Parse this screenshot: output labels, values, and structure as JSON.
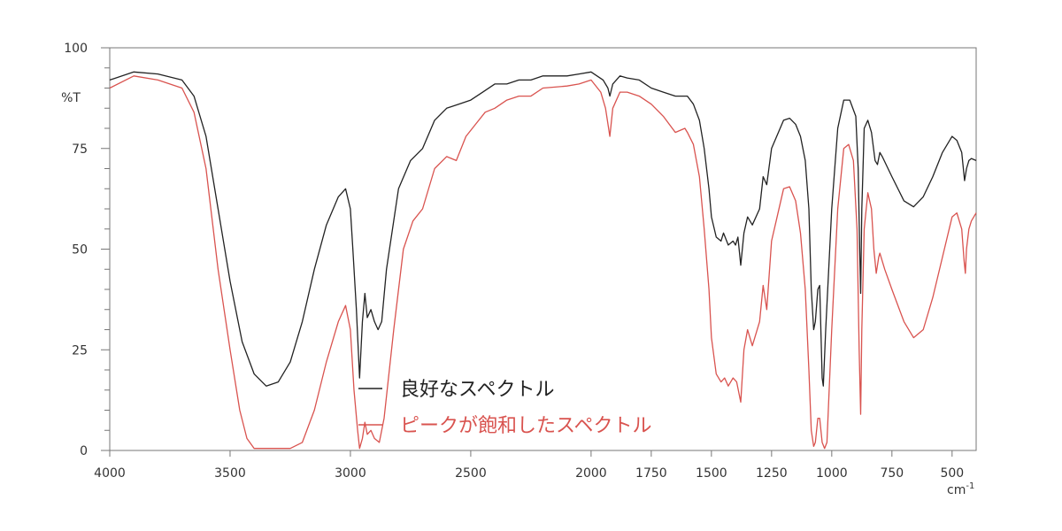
{
  "chart_data": {
    "type": "line",
    "title": "",
    "xlabel": "cm",
    "xlabel_superscript": "-1",
    "ylabel": "%T",
    "xlim": [
      4000,
      400
    ],
    "ylim": [
      0,
      100
    ],
    "x_reversed": true,
    "grid": false,
    "legend_position": "bottom-center",
    "x_ticks": [
      4000,
      3500,
      3000,
      2500,
      2000,
      1750,
      1500,
      1250,
      1000,
      750,
      500
    ],
    "x_tick_labels": [
      "4000",
      "3500",
      "3000",
      "2500",
      "2000",
      "1750",
      "1500",
      "1250",
      "1000",
      "750",
      "500"
    ],
    "y_ticks": [
      0,
      25,
      50,
      75,
      100
    ],
    "y_tick_labels": [
      "0",
      "25",
      "50",
      "75",
      "100"
    ],
    "series": [
      {
        "name": "良好なスペクトル",
        "color": "#222222",
        "points": [
          [
            4000,
            92
          ],
          [
            3900,
            94
          ],
          [
            3800,
            93.5
          ],
          [
            3700,
            92
          ],
          [
            3650,
            88
          ],
          [
            3600,
            78
          ],
          [
            3550,
            60
          ],
          [
            3500,
            42
          ],
          [
            3450,
            27
          ],
          [
            3400,
            19
          ],
          [
            3350,
            16
          ],
          [
            3300,
            17
          ],
          [
            3250,
            22
          ],
          [
            3200,
            32
          ],
          [
            3150,
            45
          ],
          [
            3100,
            56
          ],
          [
            3050,
            63
          ],
          [
            3020,
            65
          ],
          [
            3000,
            60
          ],
          [
            2990,
            50
          ],
          [
            2975,
            35
          ],
          [
            2962,
            18
          ],
          [
            2950,
            32
          ],
          [
            2940,
            39
          ],
          [
            2930,
            33
          ],
          [
            2915,
            35
          ],
          [
            2900,
            32
          ],
          [
            2885,
            30
          ],
          [
            2870,
            32
          ],
          [
            2850,
            45
          ],
          [
            2800,
            65
          ],
          [
            2750,
            72
          ],
          [
            2700,
            75
          ],
          [
            2650,
            82
          ],
          [
            2600,
            85
          ],
          [
            2550,
            86
          ],
          [
            2500,
            87
          ],
          [
            2450,
            89
          ],
          [
            2400,
            91
          ],
          [
            2350,
            91
          ],
          [
            2300,
            92
          ],
          [
            2250,
            92
          ],
          [
            2200,
            93
          ],
          [
            2100,
            93
          ],
          [
            2050,
            93.5
          ],
          [
            2000,
            94
          ],
          [
            1950,
            92
          ],
          [
            1930,
            90
          ],
          [
            1922,
            88
          ],
          [
            1910,
            91
          ],
          [
            1880,
            93
          ],
          [
            1850,
            92.5
          ],
          [
            1800,
            92
          ],
          [
            1750,
            90
          ],
          [
            1700,
            89
          ],
          [
            1650,
            88
          ],
          [
            1600,
            88
          ],
          [
            1575,
            86
          ],
          [
            1550,
            82
          ],
          [
            1530,
            75
          ],
          [
            1510,
            65
          ],
          [
            1500,
            58
          ],
          [
            1480,
            53
          ],
          [
            1460,
            52
          ],
          [
            1450,
            54
          ],
          [
            1430,
            51
          ],
          [
            1410,
            52
          ],
          [
            1400,
            51
          ],
          [
            1390,
            53
          ],
          [
            1378,
            46
          ],
          [
            1365,
            54
          ],
          [
            1350,
            58
          ],
          [
            1330,
            56
          ],
          [
            1300,
            60
          ],
          [
            1285,
            68
          ],
          [
            1270,
            66
          ],
          [
            1250,
            75
          ],
          [
            1200,
            82
          ],
          [
            1175,
            82.5
          ],
          [
            1150,
            81
          ],
          [
            1130,
            78
          ],
          [
            1110,
            72
          ],
          [
            1095,
            60
          ],
          [
            1085,
            40
          ],
          [
            1075,
            30
          ],
          [
            1068,
            32
          ],
          [
            1058,
            40
          ],
          [
            1050,
            41
          ],
          [
            1040,
            18
          ],
          [
            1035,
            16
          ],
          [
            1025,
            30
          ],
          [
            1000,
            60
          ],
          [
            975,
            80
          ],
          [
            950,
            87
          ],
          [
            925,
            87
          ],
          [
            900,
            83
          ],
          [
            890,
            70
          ],
          [
            884,
            50
          ],
          [
            880,
            39
          ],
          [
            875,
            60
          ],
          [
            865,
            80
          ],
          [
            850,
            82
          ],
          [
            835,
            79
          ],
          [
            820,
            72
          ],
          [
            810,
            71
          ],
          [
            800,
            74
          ],
          [
            790,
            73
          ],
          [
            750,
            68
          ],
          [
            700,
            62
          ],
          [
            660,
            60.5
          ],
          [
            620,
            63
          ],
          [
            580,
            68
          ],
          [
            540,
            74
          ],
          [
            500,
            78
          ],
          [
            480,
            77
          ],
          [
            460,
            74
          ],
          [
            448,
            67
          ],
          [
            440,
            70
          ],
          [
            430,
            72
          ],
          [
            420,
            72.5
          ],
          [
            400,
            72
          ]
        ]
      },
      {
        "name": "ピークが飽和したスペクトル",
        "color": "#d9534f",
        "points": [
          [
            4000,
            90
          ],
          [
            3900,
            93
          ],
          [
            3800,
            92
          ],
          [
            3700,
            90
          ],
          [
            3650,
            84
          ],
          [
            3600,
            70
          ],
          [
            3550,
            45
          ],
          [
            3500,
            25
          ],
          [
            3460,
            10
          ],
          [
            3430,
            3
          ],
          [
            3400,
            0.5
          ],
          [
            3350,
            0.5
          ],
          [
            3250,
            0.5
          ],
          [
            3200,
            2
          ],
          [
            3150,
            10
          ],
          [
            3100,
            22
          ],
          [
            3050,
            32
          ],
          [
            3020,
            36
          ],
          [
            3000,
            30
          ],
          [
            2985,
            15
          ],
          [
            2970,
            5
          ],
          [
            2962,
            0.5
          ],
          [
            2950,
            3
          ],
          [
            2940,
            7
          ],
          [
            2930,
            4
          ],
          [
            2915,
            5
          ],
          [
            2900,
            3
          ],
          [
            2880,
            2
          ],
          [
            2860,
            8
          ],
          [
            2820,
            30
          ],
          [
            2780,
            50
          ],
          [
            2740,
            57
          ],
          [
            2700,
            60
          ],
          [
            2650,
            70
          ],
          [
            2600,
            73
          ],
          [
            2560,
            72
          ],
          [
            2520,
            78
          ],
          [
            2480,
            81
          ],
          [
            2440,
            84
          ],
          [
            2400,
            85
          ],
          [
            2350,
            87
          ],
          [
            2300,
            88
          ],
          [
            2250,
            88
          ],
          [
            2200,
            90
          ],
          [
            2100,
            90.5
          ],
          [
            2050,
            91
          ],
          [
            2000,
            92
          ],
          [
            1960,
            89
          ],
          [
            1940,
            85
          ],
          [
            1922,
            78
          ],
          [
            1910,
            85
          ],
          [
            1880,
            89
          ],
          [
            1850,
            89
          ],
          [
            1800,
            88
          ],
          [
            1750,
            86
          ],
          [
            1700,
            83
          ],
          [
            1650,
            79
          ],
          [
            1610,
            80
          ],
          [
            1600,
            79
          ],
          [
            1575,
            76
          ],
          [
            1550,
            68
          ],
          [
            1530,
            55
          ],
          [
            1510,
            40
          ],
          [
            1500,
            28
          ],
          [
            1480,
            19
          ],
          [
            1460,
            17
          ],
          [
            1445,
            18
          ],
          [
            1430,
            16
          ],
          [
            1410,
            18
          ],
          [
            1395,
            17
          ],
          [
            1378,
            12
          ],
          [
            1365,
            25
          ],
          [
            1350,
            30
          ],
          [
            1330,
            26
          ],
          [
            1300,
            32
          ],
          [
            1285,
            41
          ],
          [
            1270,
            35
          ],
          [
            1250,
            52
          ],
          [
            1200,
            65
          ],
          [
            1175,
            65.5
          ],
          [
            1150,
            62
          ],
          [
            1130,
            54
          ],
          [
            1110,
            40
          ],
          [
            1095,
            20
          ],
          [
            1085,
            5
          ],
          [
            1075,
            1
          ],
          [
            1068,
            2
          ],
          [
            1058,
            8
          ],
          [
            1050,
            8
          ],
          [
            1040,
            2
          ],
          [
            1030,
            0.5
          ],
          [
            1020,
            2
          ],
          [
            1000,
            30
          ],
          [
            975,
            60
          ],
          [
            950,
            75
          ],
          [
            930,
            76
          ],
          [
            910,
            72
          ],
          [
            895,
            55
          ],
          [
            886,
            25
          ],
          [
            880,
            9
          ],
          [
            875,
            30
          ],
          [
            865,
            55
          ],
          [
            850,
            64
          ],
          [
            835,
            60
          ],
          [
            825,
            50
          ],
          [
            815,
            44
          ],
          [
            805,
            48
          ],
          [
            800,
            49
          ],
          [
            780,
            45
          ],
          [
            750,
            40
          ],
          [
            700,
            32
          ],
          [
            660,
            28
          ],
          [
            620,
            30
          ],
          [
            580,
            38
          ],
          [
            540,
            48
          ],
          [
            500,
            58
          ],
          [
            480,
            59
          ],
          [
            460,
            55
          ],
          [
            450,
            47
          ],
          [
            445,
            44
          ],
          [
            440,
            50
          ],
          [
            430,
            55
          ],
          [
            420,
            57
          ],
          [
            400,
            59
          ]
        ]
      }
    ]
  }
}
